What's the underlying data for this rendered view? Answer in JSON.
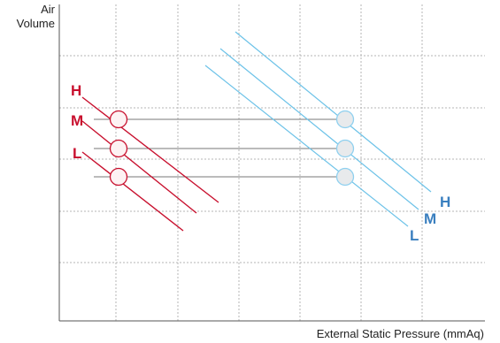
{
  "axes": {
    "y_label_line1": "Air",
    "y_label_line2": "Volume",
    "x_label": "External Static Pressure (mmAq)"
  },
  "groups": [
    {
      "id": "left",
      "curve_color": "#c8102e",
      "marker_fill": "#fdf2f3",
      "marker_stroke": "#c8102e",
      "speeds": [
        {
          "label": "H"
        },
        {
          "label": "M"
        },
        {
          "label": "L"
        }
      ]
    },
    {
      "id": "right",
      "curve_color": "#6cc2e8",
      "marker_fill": "#e8eaec",
      "marker_stroke": "#8fd0ef",
      "label_color": "#3a7fbf",
      "speeds": [
        {
          "label": "H"
        },
        {
          "label": "M"
        },
        {
          "label": "L"
        }
      ]
    }
  ],
  "colors": {
    "grid": "#b5b5b5",
    "axis": "#555555",
    "connector": "#777777"
  }
}
